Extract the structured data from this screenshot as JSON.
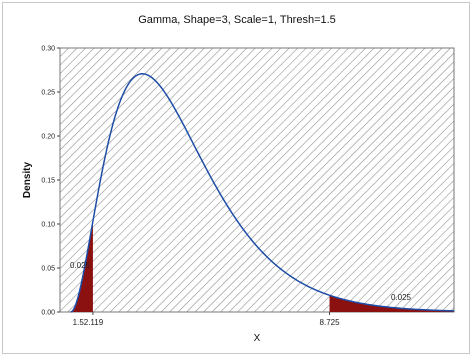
{
  "chart_data": {
    "type": "area",
    "title": "Gamma, Shape=3, Scale=1, Thresh=1.5",
    "xlabel": "X",
    "ylabel": "Density",
    "distribution": {
      "name": "Gamma",
      "shape": 3,
      "scale": 1,
      "threshold": 1.5
    },
    "xlim": [
      1.2,
      12.2
    ],
    "ylim": [
      0,
      0.3
    ],
    "yticks": [
      "0.00",
      "0.05",
      "0.10",
      "0.15",
      "0.20",
      "0.25",
      "0.30"
    ],
    "x_tick_labels": [
      {
        "value": 2.119,
        "label": "1.52.119"
      },
      {
        "value": 8.725,
        "label": "8.725"
      }
    ],
    "shaded_regions": [
      {
        "from": 1.5,
        "to": 2.119,
        "probability": 0.025,
        "label": "0.025",
        "color": "#8b1010"
      },
      {
        "from": 8.725,
        "to": 12.2,
        "probability": 0.025,
        "label": "0.025",
        "color": "#8b1010"
      }
    ],
    "curve_color": "#1f4ea8",
    "background": "hatched",
    "grid": false,
    "legend": "none"
  }
}
